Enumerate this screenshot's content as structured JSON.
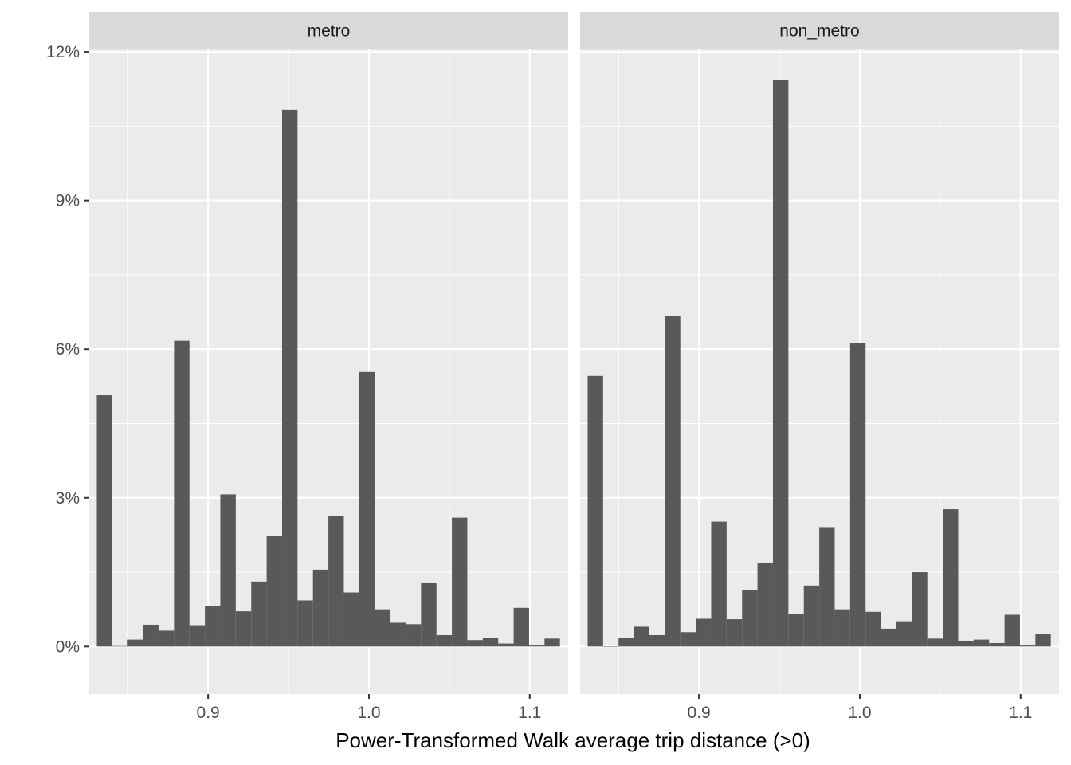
{
  "chart_data": {
    "type": "bar",
    "subtype": "faceted histogram",
    "xlabel": "Power-Transformed Walk average trip distance (>0)",
    "ylabel": "",
    "y_format": "percent",
    "ylim": [
      -0.0096,
      0.1205
    ],
    "xlim": [
      0.8261,
      1.1239
    ],
    "y_ticks": [
      0,
      0.03,
      0.06,
      0.09,
      0.12
    ],
    "y_tick_labels": [
      "0%",
      "3%",
      "6%",
      "9%",
      "12%"
    ],
    "x_ticks": [
      0.9,
      1.0,
      1.1
    ],
    "x_tick_labels": [
      "0.9",
      "1.0",
      "1.1"
    ],
    "bin_starts": [
      0.8308,
      0.8404,
      0.85,
      0.8596,
      0.8692,
      0.8788,
      0.8884,
      0.898,
      0.9076,
      0.9172,
      0.9268,
      0.9364,
      0.946,
      0.9556,
      0.9652,
      0.9748,
      0.9844,
      0.994,
      1.0036,
      1.0132,
      1.0228,
      1.0324,
      1.042,
      1.0516,
      1.0612,
      1.0708,
      1.0804,
      1.09,
      1.0996,
      1.1092
    ],
    "bin_width": 0.0096,
    "grid": true,
    "series": [
      {
        "name": "metro",
        "values": [
          0.0507,
          0.0001,
          0.0014,
          0.0044,
          0.0032,
          0.0617,
          0.0043,
          0.0081,
          0.0307,
          0.0071,
          0.0131,
          0.0223,
          0.1083,
          0.0093,
          0.0155,
          0.0264,
          0.0109,
          0.0554,
          0.0075,
          0.0048,
          0.0045,
          0.0128,
          0.0023,
          0.026,
          0.0013,
          0.0017,
          0.0006,
          0.0078,
          0.0002,
          0.0016
        ]
      },
      {
        "name": "non_metro",
        "values": [
          0.0546,
          0.0,
          0.0017,
          0.004,
          0.0023,
          0.0667,
          0.0029,
          0.0056,
          0.0252,
          0.0055,
          0.0114,
          0.0168,
          0.1143,
          0.0066,
          0.0123,
          0.0241,
          0.0075,
          0.0612,
          0.007,
          0.0036,
          0.0051,
          0.015,
          0.0016,
          0.0277,
          0.0011,
          0.0014,
          0.0007,
          0.0064,
          0.0002,
          0.0026
        ]
      }
    ]
  },
  "colors": {
    "panel_bg": "#ebebeb",
    "strip_bg": "#d9d9d9",
    "bar_fill": "#595959",
    "grid": "#ffffff",
    "tick": "#333333"
  }
}
